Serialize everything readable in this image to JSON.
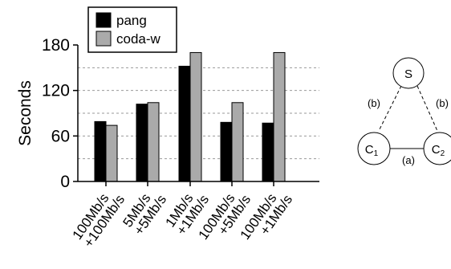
{
  "chart_data": {
    "type": "bar",
    "ylabel": "Seconds",
    "ylim": [
      0,
      180
    ],
    "yticks": [
      0,
      60,
      120,
      180
    ],
    "grid_lines": [
      30,
      60,
      90,
      120,
      150
    ],
    "categories": [
      [
        "100Mb/s",
        "+100Mb/s"
      ],
      [
        "5Mb/s",
        "+5Mb/s"
      ],
      [
        "1Mb/s",
        "+1Mb/s"
      ],
      [
        "100Mb/s",
        "+5Mb/s"
      ],
      [
        "100Mb/s",
        "+1Mb/s"
      ]
    ],
    "series": [
      {
        "name": "pang",
        "color": "#000000",
        "values": [
          79,
          102,
          152,
          78,
          77
        ]
      },
      {
        "name": "coda-w",
        "color": "#aaaaaa",
        "values": [
          74,
          104,
          170,
          104,
          170
        ]
      }
    ],
    "legend": "top-left"
  },
  "diagram": {
    "nodes": {
      "server": "S",
      "client1": "C",
      "client1_sub": "1",
      "client2": "C",
      "client2_sub": "2"
    },
    "links": {
      "left": "(b)",
      "right": "(b)",
      "bottom": "(a)"
    }
  }
}
